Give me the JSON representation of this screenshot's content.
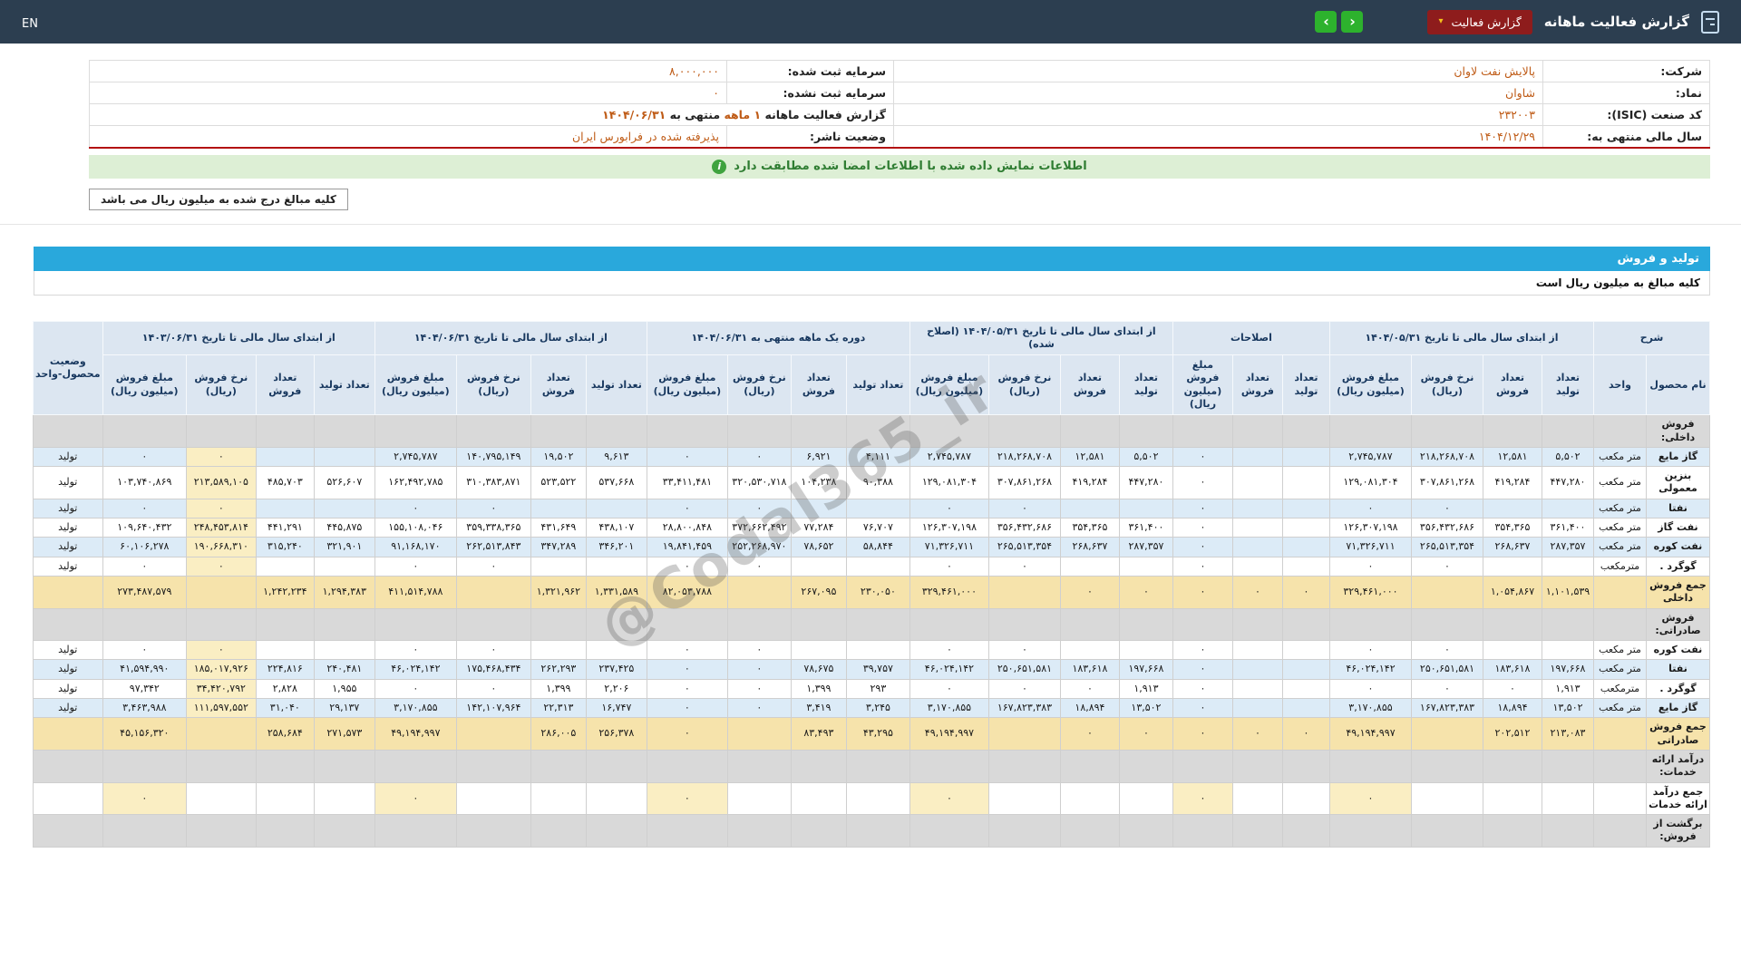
{
  "topbar": {
    "title": "گزارش فعالیت ماهانه",
    "report_button": {
      "label": "گزارش فعالیت",
      "chevron": "▾"
    },
    "nav": {
      "prev": "‹",
      "next": "›"
    },
    "lang": "EN"
  },
  "info": {
    "company_label": "شرکت:",
    "company_value": "پالایش نفت لاوان",
    "capital_reg_label": "سرمایه ثبت شده:",
    "capital_reg_value": "۸,۰۰۰,۰۰۰",
    "symbol_label": "نماد:",
    "symbol_value": "شاوان",
    "capital_unreg_label": "سرمایه ثبت نشده:",
    "capital_unreg_value": "۰",
    "isic_label": "کد صنعت (ISIC):",
    "isic_value": "۲۳۲۰۰۳",
    "report_line": {
      "prefix": "گزارش فعالیت ماهانه",
      "period": "۱ ماهه",
      "middle": "منتهی به",
      "date": "۱۴۰۴/۰۶/۳۱"
    },
    "fiscal_label": "سال مالی منتهی به:",
    "fiscal_value": "۱۴۰۴/۱۲/۲۹",
    "status_label": "وضعیت ناشر:",
    "status_value": "پذیرفته شده در فرابورس ایران"
  },
  "notice": {
    "text": "اطلاعات نمایش داده شده با اطلاعات امضا شده مطابقت دارد",
    "icon": "i"
  },
  "million_note": "کلیه مبالغ درج شده به میلیون ریال می باشد",
  "section": {
    "title": "تولید و فروش",
    "subtitle": "کلیه مبالغ به میلیون ریال است"
  },
  "watermark": "@Codal365_ir",
  "table": {
    "desc_header": "شرح",
    "name_header": "نام محصول",
    "unit_header": "واحد",
    "status_header": "وضعیت محصول-واحد",
    "groups": [
      {
        "label": "از ابتدای سال مالی تا تاریخ ۱۴۰۴/۰۵/۳۱",
        "cols": [
          "تعداد تولید",
          "تعداد فروش",
          "نرخ فروش (ریال)",
          "مبلغ فروش (میلیون ریال)"
        ]
      },
      {
        "label": "اصلاحات",
        "cols": [
          "تعداد تولید",
          "تعداد فروش",
          "مبلغ فروش (میلیون ریال)"
        ]
      },
      {
        "label": "از ابتدای سال مالی تا تاریخ ۱۴۰۴/۰۵/۳۱ (اصلاح شده)",
        "cols": [
          "تعداد تولید",
          "تعداد فروش",
          "نرخ فروش (ریال)",
          "مبلغ فروش (میلیون ریال)"
        ]
      },
      {
        "label": "دوره یک ماهه منتهی به ۱۴۰۴/۰۶/۳۱",
        "cols": [
          "تعداد تولید",
          "تعداد فروش",
          "نرخ فروش (ریال)",
          "مبلغ فروش (میلیون ریال)"
        ]
      },
      {
        "label": "از ابتدای سال مالی تا تاریخ ۱۴۰۴/۰۶/۳۱",
        "cols": [
          "تعداد تولید",
          "تعداد فروش",
          "نرخ فروش (ریال)",
          "مبلغ فروش (میلیون ریال)"
        ]
      },
      {
        "label": "از ابتدای سال مالی تا تاریخ ۱۴۰۳/۰۶/۳۱",
        "cols": [
          "تعداد تولید",
          "تعداد فروش",
          "نرخ فروش (ریال)",
          "مبلغ فروش (میلیون ریال)"
        ]
      }
    ],
    "rows": [
      {
        "type": "section",
        "label": "فروش داخلی:"
      },
      {
        "type": "product",
        "name": "گاز مایع",
        "unit": "متر مکعب",
        "status": "تولید",
        "shade": "blue",
        "v": [
          "۵,۵۰۲",
          "۱۲,۵۸۱",
          "۲۱۸,۲۶۸,۷۰۸",
          "۲,۷۴۵,۷۸۷",
          "",
          "",
          "۰",
          "۵,۵۰۲",
          "۱۲,۵۸۱",
          "۲۱۸,۲۶۸,۷۰۸",
          "۲,۷۴۵,۷۸۷",
          "۴,۱۱۱",
          "۶,۹۲۱",
          "۰",
          "۰",
          "۹,۶۱۳",
          "۱۹,۵۰۲",
          "۱۴۰,۷۹۵,۱۴۹",
          "۲,۷۴۵,۷۸۷",
          "",
          "",
          "۰",
          "۰"
        ],
        "hl": [
          21
        ]
      },
      {
        "type": "product",
        "name": "بنزین معمولی",
        "unit": "متر مکعب",
        "status": "تولید",
        "shade": "white",
        "v": [
          "۴۴۷,۲۸۰",
          "۴۱۹,۲۸۴",
          "۳۰۷,۸۶۱,۲۶۸",
          "۱۲۹,۰۸۱,۳۰۴",
          "",
          "",
          "۰",
          "۴۴۷,۲۸۰",
          "۴۱۹,۲۸۴",
          "۳۰۷,۸۶۱,۲۶۸",
          "۱۲۹,۰۸۱,۳۰۴",
          "۹۰,۳۸۸",
          "۱۰۴,۲۳۸",
          "۳۲۰,۵۳۰,۷۱۸",
          "۳۳,۴۱۱,۴۸۱",
          "۵۳۷,۶۶۸",
          "۵۲۳,۵۲۲",
          "۳۱۰,۳۸۳,۸۷۱",
          "۱۶۲,۴۹۲,۷۸۵",
          "۵۲۶,۶۰۷",
          "۴۸۵,۷۰۳",
          "۲۱۳,۵۸۹,۱۰۵",
          "۱۰۳,۷۴۰,۸۶۹"
        ],
        "hl": [
          21
        ]
      },
      {
        "type": "product",
        "name": "نفتا",
        "unit": "متر مکعب",
        "status": "تولید",
        "shade": "blue",
        "v": [
          "",
          "",
          "۰",
          "۰",
          "",
          "",
          "۰",
          "",
          "",
          "۰",
          "۰",
          "",
          "",
          "۰",
          "۰",
          "",
          "",
          "۰",
          "۰",
          "",
          "",
          "۰",
          "۰"
        ],
        "hl": [
          21
        ]
      },
      {
        "type": "product",
        "name": "نفت گاز",
        "unit": "متر مکعب",
        "status": "تولید",
        "shade": "white",
        "v": [
          "۳۶۱,۴۰۰",
          "۳۵۴,۳۶۵",
          "۳۵۶,۴۳۲,۶۸۶",
          "۱۲۶,۳۰۷,۱۹۸",
          "",
          "",
          "۰",
          "۳۶۱,۴۰۰",
          "۳۵۴,۳۶۵",
          "۳۵۶,۴۳۲,۶۸۶",
          "۱۲۶,۳۰۷,۱۹۸",
          "۷۶,۷۰۷",
          "۷۷,۲۸۴",
          "۳۷۲,۶۶۲,۴۹۲",
          "۲۸,۸۰۰,۸۴۸",
          "۴۳۸,۱۰۷",
          "۴۳۱,۶۴۹",
          "۳۵۹,۳۳۸,۳۶۵",
          "۱۵۵,۱۰۸,۰۴۶",
          "۴۴۵,۸۷۵",
          "۴۴۱,۲۹۱",
          "۲۴۸,۴۵۳,۸۱۴",
          "۱۰۹,۶۴۰,۴۳۲"
        ],
        "hl": [
          21
        ]
      },
      {
        "type": "product",
        "name": "نفت کوره",
        "unit": "متر مکعب",
        "status": "تولید",
        "shade": "blue",
        "v": [
          "۲۸۷,۳۵۷",
          "۲۶۸,۶۳۷",
          "۲۶۵,۵۱۳,۳۵۴",
          "۷۱,۳۲۶,۷۱۱",
          "",
          "",
          "۰",
          "۲۸۷,۳۵۷",
          "۲۶۸,۶۳۷",
          "۲۶۵,۵۱۳,۳۵۴",
          "۷۱,۳۲۶,۷۱۱",
          "۵۸,۸۴۴",
          "۷۸,۶۵۲",
          "۲۵۲,۲۶۸,۹۷۰",
          "۱۹,۸۴۱,۴۵۹",
          "۳۴۶,۲۰۱",
          "۳۴۷,۲۸۹",
          "۲۶۲,۵۱۳,۸۴۳",
          "۹۱,۱۶۸,۱۷۰",
          "۳۲۱,۹۰۱",
          "۳۱۵,۲۴۰",
          "۱۹۰,۶۶۸,۳۱۰",
          "۶۰,۱۰۶,۲۷۸"
        ],
        "hl": [
          21
        ]
      },
      {
        "type": "product",
        "name": "گوگرد .",
        "unit": "مترمکعب",
        "status": "تولید",
        "shade": "white",
        "v": [
          "",
          "",
          "۰",
          "۰",
          "",
          "",
          "۰",
          "",
          "",
          "۰",
          "۰",
          "",
          "",
          "۰",
          "۰",
          "",
          "",
          "۰",
          "۰",
          "",
          "",
          "۰",
          "۰"
        ],
        "hl": [
          21
        ]
      },
      {
        "type": "total",
        "label": "جمع فروش داخلی",
        "v": [
          "۱,۱۰۱,۵۳۹",
          "۱,۰۵۴,۸۶۷",
          "",
          "۳۲۹,۴۶۱,۰۰۰",
          "۰",
          "۰",
          "۰",
          "۰",
          "۰",
          "",
          "۳۲۹,۴۶۱,۰۰۰",
          "۲۳۰,۰۵۰",
          "۲۶۷,۰۹۵",
          "",
          "۸۲,۰۵۳,۷۸۸",
          "۱,۳۳۱,۵۸۹",
          "۱,۳۲۱,۹۶۲",
          "",
          "۴۱۱,۵۱۴,۷۸۸",
          "۱,۲۹۴,۳۸۳",
          "۱,۲۴۲,۲۳۴",
          "",
          "۲۷۳,۴۸۷,۵۷۹"
        ]
      },
      {
        "type": "section",
        "label": "فروش صادراتی:"
      },
      {
        "type": "product",
        "name": "نفت کوره",
        "unit": "متر مکعب",
        "status": "تولید",
        "shade": "white",
        "v": [
          "",
          "",
          "۰",
          "۰",
          "",
          "",
          "۰",
          "",
          "",
          "۰",
          "۰",
          "",
          "",
          "۰",
          "۰",
          "",
          "",
          "۰",
          "۰",
          "",
          "",
          "۰",
          "۰"
        ],
        "hl": [
          21
        ]
      },
      {
        "type": "product",
        "name": "نفتا",
        "unit": "متر مکعب",
        "status": "تولید",
        "shade": "blue",
        "v": [
          "۱۹۷,۶۶۸",
          "۱۸۳,۶۱۸",
          "۲۵۰,۶۵۱,۵۸۱",
          "۴۶,۰۲۴,۱۴۲",
          "",
          "",
          "۰",
          "۱۹۷,۶۶۸",
          "۱۸۳,۶۱۸",
          "۲۵۰,۶۵۱,۵۸۱",
          "۴۶,۰۲۴,۱۴۲",
          "۳۹,۷۵۷",
          "۷۸,۶۷۵",
          "۰",
          "۰",
          "۲۳۷,۴۲۵",
          "۲۶۲,۲۹۳",
          "۱۷۵,۴۶۸,۴۳۴",
          "۴۶,۰۲۴,۱۴۲",
          "۲۴۰,۴۸۱",
          "۲۲۴,۸۱۶",
          "۱۸۵,۰۱۷,۹۲۶",
          "۴۱,۵۹۴,۹۹۰"
        ],
        "hl": [
          21
        ]
      },
      {
        "type": "product",
        "name": "گوگرد .",
        "unit": "مترمکعب",
        "status": "تولید",
        "shade": "white",
        "v": [
          "۱,۹۱۳",
          "۰",
          "۰",
          "۰",
          "",
          "",
          "۰",
          "۱,۹۱۳",
          "۰",
          "۰",
          "۰",
          "۲۹۳",
          "۱,۳۹۹",
          "۰",
          "۰",
          "۲,۲۰۶",
          "۱,۳۹۹",
          "۰",
          "۰",
          "۱,۹۵۵",
          "۲,۸۲۸",
          "۳۴,۴۲۰,۷۹۲",
          "۹۷,۳۴۲"
        ],
        "hl": [
          21
        ]
      },
      {
        "type": "product",
        "name": "گاز مایع",
        "unit": "متر مکعب",
        "status": "تولید",
        "shade": "blue",
        "v": [
          "۱۳,۵۰۲",
          "۱۸,۸۹۴",
          "۱۶۷,۸۲۳,۳۸۳",
          "۳,۱۷۰,۸۵۵",
          "",
          "",
          "۰",
          "۱۳,۵۰۲",
          "۱۸,۸۹۴",
          "۱۶۷,۸۲۳,۳۸۳",
          "۳,۱۷۰,۸۵۵",
          "۳,۲۴۵",
          "۳,۴۱۹",
          "۰",
          "۰",
          "۱۶,۷۴۷",
          "۲۲,۳۱۳",
          "۱۴۲,۱۰۷,۹۶۴",
          "۳,۱۷۰,۸۵۵",
          "۲۹,۱۳۷",
          "۳۱,۰۴۰",
          "۱۱۱,۵۹۷,۵۵۲",
          "۳,۴۶۳,۹۸۸"
        ],
        "hl": [
          21
        ]
      },
      {
        "type": "total",
        "label": "جمع فروش صادراتی",
        "v": [
          "۲۱۳,۰۸۳",
          "۲۰۲,۵۱۲",
          "",
          "۴۹,۱۹۴,۹۹۷",
          "۰",
          "۰",
          "۰",
          "۰",
          "۰",
          "",
          "۴۹,۱۹۴,۹۹۷",
          "۴۳,۲۹۵",
          "۸۳,۴۹۳",
          "",
          "۰",
          "۲۵۶,۳۷۸",
          "۲۸۶,۰۰۵",
          "",
          "۴۹,۱۹۴,۹۹۷",
          "۲۷۱,۵۷۳",
          "۲۵۸,۶۸۴",
          "",
          "۴۵,۱۵۶,۳۲۰"
        ]
      },
      {
        "type": "section",
        "label": "درآمد ارائه خدمات:"
      },
      {
        "type": "total",
        "label": "جمع درآمد ارائه خدمات",
        "plain": true,
        "v": [
          "",
          "",
          "",
          "۰",
          "",
          "",
          "۰",
          "",
          "",
          "",
          "۰",
          "",
          "",
          "",
          "۰",
          "",
          "",
          "",
          "۰",
          "",
          "",
          "",
          "۰"
        ],
        "hl": [
          3,
          6,
          10,
          14,
          18,
          22
        ]
      },
      {
        "type": "section",
        "label": "برگشت از فروش:"
      }
    ]
  }
}
